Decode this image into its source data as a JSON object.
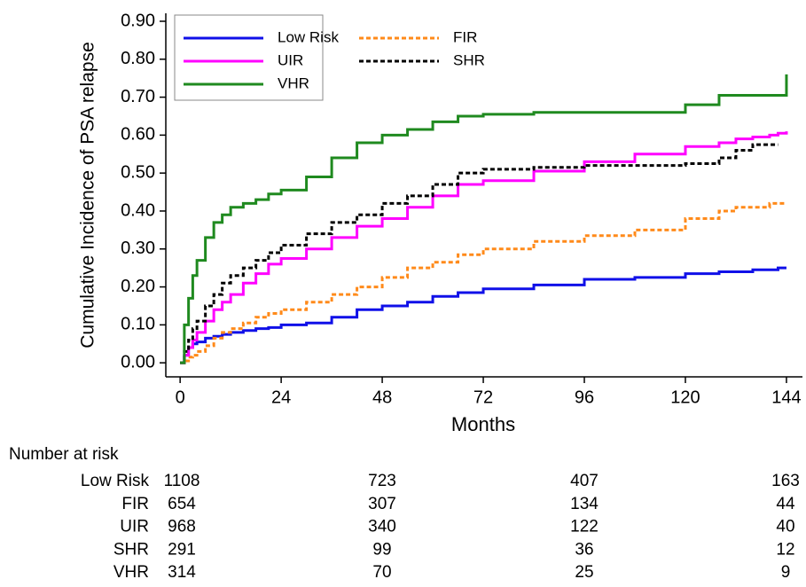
{
  "chart_data": {
    "type": "step",
    "xlabel": "Months",
    "ylabel": "Cumulative Incidence of PSA relapse",
    "x": [
      0,
      1,
      2,
      3,
      4,
      6,
      8,
      10,
      12,
      15,
      18,
      21,
      24,
      30,
      36,
      42,
      48,
      54,
      60,
      66,
      72,
      84,
      96,
      108,
      120,
      128,
      132,
      136,
      140,
      142,
      144
    ],
    "series": [
      {
        "name": "Low Risk",
        "color": "#1010e8",
        "dashed": false,
        "values": [
          0,
          0.02,
          0.04,
          0.05,
          0.055,
          0.065,
          0.07,
          0.075,
          0.08,
          0.085,
          0.09,
          0.093,
          0.1,
          0.105,
          0.12,
          0.14,
          0.15,
          0.16,
          0.175,
          0.185,
          0.195,
          0.205,
          0.22,
          0.225,
          0.235,
          0.24,
          0.24,
          0.245,
          0.245,
          0.25,
          0.25
        ]
      },
      {
        "name": "FIR",
        "color": "#ff8a1a",
        "dashed": true,
        "values": [
          0,
          0.005,
          0.015,
          0.02,
          0.03,
          0.045,
          0.065,
          0.08,
          0.09,
          0.105,
          0.12,
          0.13,
          0.14,
          0.16,
          0.18,
          0.2,
          0.225,
          0.25,
          0.265,
          0.285,
          0.3,
          0.32,
          0.335,
          0.35,
          0.38,
          0.4,
          0.41,
          0.41,
          0.42,
          0.42,
          0.42
        ]
      },
      {
        "name": "UIR",
        "color": "#ff00ff",
        "dashed": false,
        "values": [
          0,
          0.02,
          0.04,
          0.06,
          0.08,
          0.11,
          0.14,
          0.16,
          0.18,
          0.21,
          0.235,
          0.26,
          0.275,
          0.3,
          0.33,
          0.36,
          0.38,
          0.41,
          0.44,
          0.47,
          0.48,
          0.505,
          0.53,
          0.55,
          0.57,
          0.58,
          0.59,
          0.595,
          0.6,
          0.605,
          0.61
        ]
      },
      {
        "name": "SHR",
        "color": "#000000",
        "dashed": true,
        "values": [
          0,
          0.03,
          0.06,
          0.09,
          0.11,
          0.15,
          0.18,
          0.21,
          0.23,
          0.25,
          0.27,
          0.29,
          0.31,
          0.34,
          0.37,
          0.39,
          0.42,
          0.44,
          0.47,
          0.5,
          0.51,
          0.515,
          0.52,
          0.52,
          0.525,
          0.54,
          0.56,
          0.575,
          0.575,
          0.575,
          null
        ]
      },
      {
        "name": "VHR",
        "color": "#1f8a1f",
        "dashed": false,
        "values": [
          0,
          0.1,
          0.17,
          0.23,
          0.27,
          0.33,
          0.37,
          0.39,
          0.41,
          0.42,
          0.43,
          0.445,
          0.455,
          0.49,
          0.54,
          0.58,
          0.6,
          0.615,
          0.635,
          0.65,
          0.655,
          0.66,
          0.66,
          0.66,
          0.68,
          0.705,
          0.705,
          0.705,
          0.705,
          0.705,
          0.76
        ]
      }
    ],
    "xlim": [
      -3.4,
      147.8
    ],
    "xticks": [
      0,
      24,
      48,
      72,
      96,
      120,
      144
    ],
    "ylim": [
      -0.037,
      0.921
    ],
    "yticks": [
      {
        "value": 0,
        "label": "0.00"
      },
      {
        "value": 0.1,
        "label": "0.10"
      },
      {
        "value": 0.2,
        "label": "0.20"
      },
      {
        "value": 0.3,
        "label": "0.30"
      },
      {
        "value": 0.4,
        "label": "0.40"
      },
      {
        "value": 0.5,
        "label": "0.50"
      },
      {
        "value": 0.6,
        "label": "0.60"
      },
      {
        "value": 0.7,
        "label": "0.70"
      },
      {
        "value": 0.8,
        "label": "0.80"
      },
      {
        "value": 0.9,
        "label": "0.90"
      }
    ],
    "grid": false,
    "legend": "upper left"
  },
  "risk_table": {
    "title": "Number at risk",
    "rows": [
      {
        "label": "Low Risk",
        "values": [
          1108,
          723,
          407,
          163
        ]
      },
      {
        "label": "FIR",
        "values": [
          654,
          307,
          134,
          44
        ]
      },
      {
        "label": "UIR",
        "values": [
          968,
          340,
          122,
          40
        ]
      },
      {
        "label": "SHR",
        "values": [
          291,
          99,
          36,
          12
        ]
      },
      {
        "label": "VHR",
        "values": [
          314,
          70,
          25,
          9
        ]
      }
    ]
  }
}
